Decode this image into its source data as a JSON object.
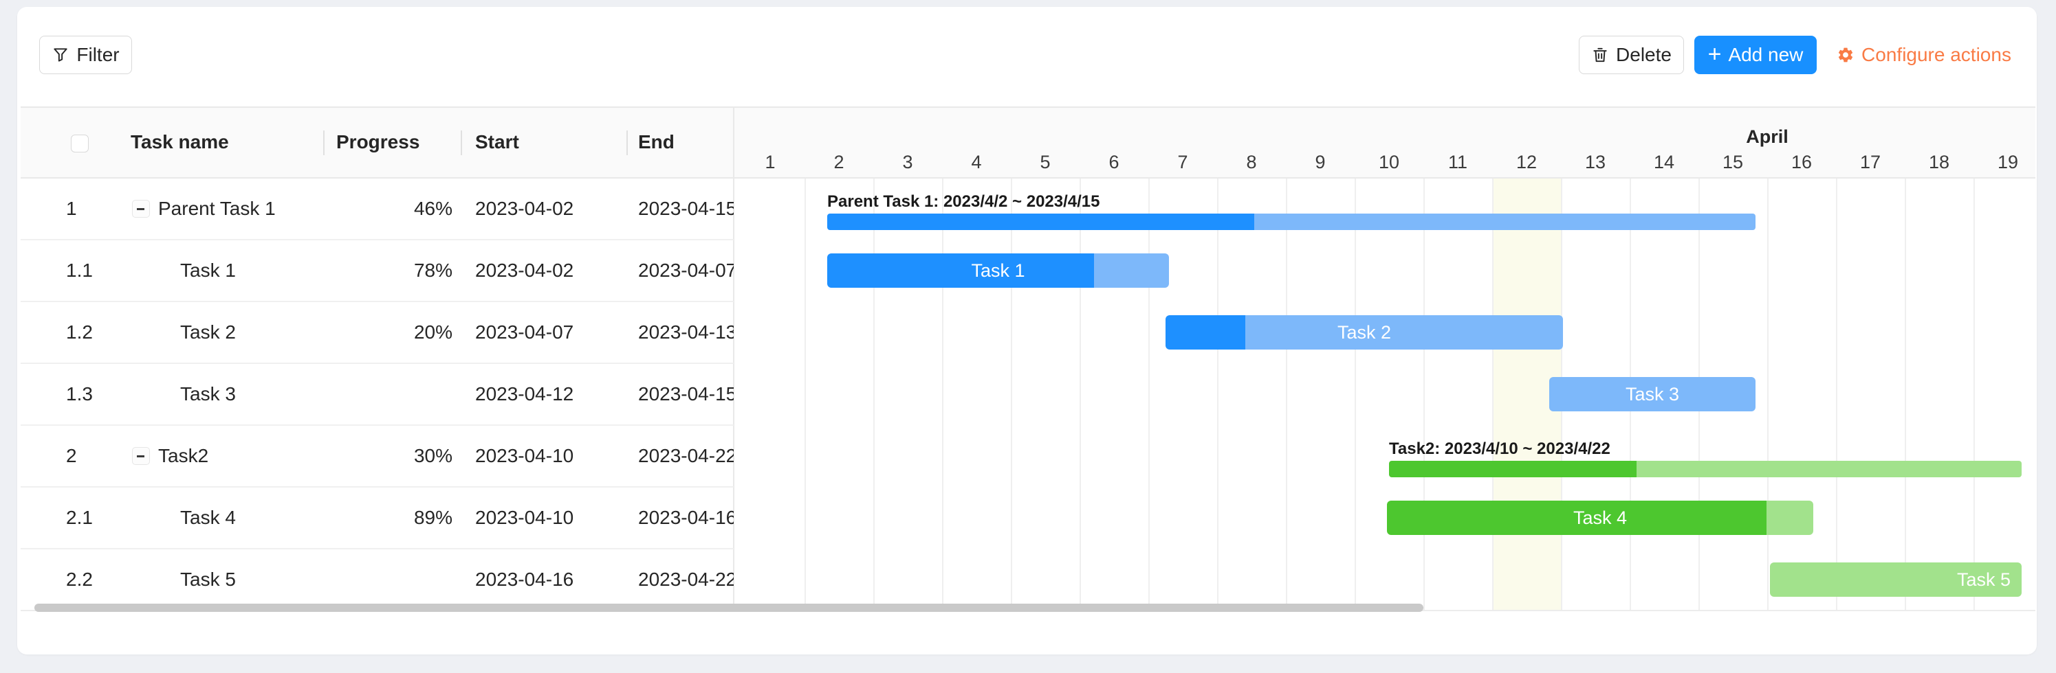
{
  "toolbar": {
    "filter_label": "Filter",
    "delete_label": "Delete",
    "add_new_plus": "+",
    "add_new_label": "Add new",
    "configure_label": "Configure actions"
  },
  "table": {
    "header_checkbox_checked": false,
    "columns": {
      "task_name": "Task name",
      "progress": "Progress",
      "start": "Start",
      "end": "End"
    },
    "rows": [
      {
        "num": "1",
        "name": "Parent Task 1",
        "progress": "46%",
        "start": "2023-04-02",
        "end": "2023-04-15",
        "group": true
      },
      {
        "num": "1.1",
        "name": "Task 1",
        "progress": "78%",
        "start": "2023-04-02",
        "end": "2023-04-07",
        "group": false
      },
      {
        "num": "1.2",
        "name": "Task 2",
        "progress": "20%",
        "start": "2023-04-07",
        "end": "2023-04-13",
        "group": false
      },
      {
        "num": "1.3",
        "name": "Task 3",
        "progress": "",
        "start": "2023-04-12",
        "end": "2023-04-15",
        "group": false
      },
      {
        "num": "2",
        "name": "Task2",
        "progress": "30%",
        "start": "2023-04-10",
        "end": "2023-04-22",
        "group": true
      },
      {
        "num": "2.1",
        "name": "Task 4",
        "progress": "89%",
        "start": "2023-04-10",
        "end": "2023-04-16",
        "group": false
      },
      {
        "num": "2.2",
        "name": "Task 5",
        "progress": "",
        "start": "2023-04-16",
        "end": "2023-04-22",
        "group": false
      }
    ]
  },
  "gantt": {
    "month_label": "April",
    "day_numbers": [
      1,
      2,
      3,
      4,
      5,
      6,
      7,
      8,
      9,
      10,
      11,
      12,
      13,
      14,
      15,
      16,
      17,
      18,
      19
    ],
    "today_day": 12,
    "bars": [
      {
        "type": "summary",
        "scheme": "blue",
        "label": "Parent Task 1: 2023/4/2 ~ 2023/4/15",
        "progress_percent": 46
      },
      {
        "type": "task",
        "scheme": "blue",
        "label": "Task 1",
        "progress_percent": 78
      },
      {
        "type": "task",
        "scheme": "blue",
        "label": "Task 2",
        "progress_percent": 20
      },
      {
        "type": "task",
        "scheme": "blue",
        "label": "Task 3",
        "progress_percent": 0
      },
      {
        "type": "summary",
        "scheme": "green",
        "label": "Task2: 2023/4/10 ~ 2023/4/22",
        "progress_percent": 30
      },
      {
        "type": "task",
        "scheme": "green",
        "label": "Task 4",
        "progress_percent": 89
      },
      {
        "type": "task",
        "scheme": "green",
        "label": "Task 5",
        "progress_percent": 0
      }
    ]
  },
  "colors": {
    "page_bg": "#eef0f4",
    "header_bg": "#fafafa",
    "accent_blue": "#1890ff",
    "accent_orange": "#f97b45",
    "bar_blue_dark": "#1e90ff",
    "bar_blue_light": "#7db8fa",
    "bar_green_dark": "#4dc72f",
    "bar_green_light": "#a2e28c",
    "today_bg": "#fbfbeb"
  }
}
